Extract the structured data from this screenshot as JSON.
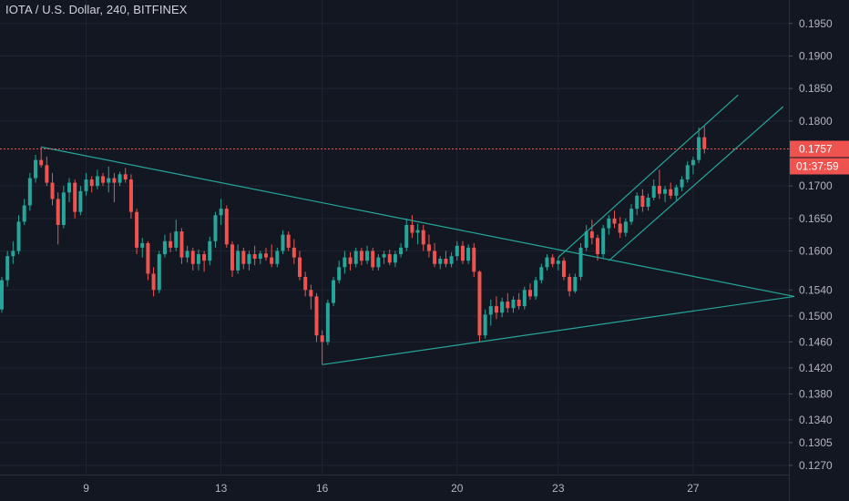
{
  "title": "IOTA / U.S. Dollar, 240, BITFINEX",
  "colors": {
    "background": "#131722",
    "grid": "#1f2433",
    "up": "#26a69a",
    "down": "#ef5350",
    "trendline": "#26a69a",
    "axis_text": "#b2b5be",
    "price_tag": "#ef5350"
  },
  "current_price": {
    "label": "0.1757",
    "value": 0.1757,
    "countdown": "01:37:59"
  },
  "chart_data": {
    "type": "candlestick",
    "title": "IOTA / U.S. Dollar, 240, BITFINEX",
    "y_ticks": [
      {
        "label": "0.1950",
        "value": 0.195
      },
      {
        "label": "0.1900",
        "value": 0.19
      },
      {
        "label": "0.1850",
        "value": 0.185
      },
      {
        "label": "0.1800",
        "value": 0.18
      },
      {
        "label": "0.1700",
        "value": 0.17
      },
      {
        "label": "0.1650",
        "value": 0.165
      },
      {
        "label": "0.1600",
        "value": 0.16
      },
      {
        "label": "0.1540",
        "value": 0.154
      },
      {
        "label": "0.1500",
        "value": 0.15
      },
      {
        "label": "0.1460",
        "value": 0.146
      },
      {
        "label": "0.1420",
        "value": 0.142
      },
      {
        "label": "0.1380",
        "value": 0.138
      },
      {
        "label": "0.1340",
        "value": 0.134
      },
      {
        "label": "0.1305",
        "value": 0.1305
      },
      {
        "label": "0.1270",
        "value": 0.127
      }
    ],
    "x_ticks": [
      {
        "label": "9",
        "index": 15
      },
      {
        "label": "13",
        "index": 39
      },
      {
        "label": "16",
        "index": 57
      },
      {
        "label": "20",
        "index": 81
      },
      {
        "label": "23",
        "index": 99
      },
      {
        "label": "27",
        "index": 123
      }
    ],
    "candles": [
      [
        0.151,
        0.156,
        0.1505,
        0.1555
      ],
      [
        0.1555,
        0.16,
        0.1545,
        0.1592
      ],
      [
        0.1592,
        0.1615,
        0.158,
        0.16
      ],
      [
        0.16,
        0.1655,
        0.1595,
        0.1645
      ],
      [
        0.1645,
        0.168,
        0.164,
        0.167
      ],
      [
        0.167,
        0.172,
        0.1662,
        0.1712
      ],
      [
        0.1712,
        0.1748,
        0.1705,
        0.174
      ],
      [
        0.174,
        0.176,
        0.1728,
        0.1732
      ],
      [
        0.1732,
        0.1745,
        0.17,
        0.1705
      ],
      [
        0.1705,
        0.172,
        0.167,
        0.168
      ],
      [
        0.168,
        0.169,
        0.161,
        0.164
      ],
      [
        0.164,
        0.17,
        0.1635,
        0.169
      ],
      [
        0.169,
        0.1712,
        0.1675,
        0.1705
      ],
      [
        0.1705,
        0.171,
        0.165,
        0.166
      ],
      [
        0.166,
        0.17,
        0.1655,
        0.1692
      ],
      [
        0.1692,
        0.172,
        0.1685,
        0.171
      ],
      [
        0.171,
        0.1715,
        0.169,
        0.17
      ],
      [
        0.17,
        0.1725,
        0.1695,
        0.1715
      ],
      [
        0.1715,
        0.172,
        0.17,
        0.1705
      ],
      [
        0.1705,
        0.173,
        0.169,
        0.1712
      ],
      [
        0.1712,
        0.172,
        0.1675,
        0.1705
      ],
      [
        0.1705,
        0.1722,
        0.17,
        0.1718
      ],
      [
        0.1718,
        0.1728,
        0.1705,
        0.171
      ],
      [
        0.171,
        0.1718,
        0.165,
        0.166
      ],
      [
        0.166,
        0.1665,
        0.1595,
        0.1605
      ],
      [
        0.1605,
        0.162,
        0.159,
        0.1612
      ],
      [
        0.1612,
        0.1615,
        0.1555,
        0.1565
      ],
      [
        0.1565,
        0.1575,
        0.153,
        0.154
      ],
      [
        0.154,
        0.16,
        0.1535,
        0.1595
      ],
      [
        0.1595,
        0.1625,
        0.159,
        0.1615
      ],
      [
        0.1615,
        0.1628,
        0.1598,
        0.1605
      ],
      [
        0.1605,
        0.1648,
        0.16,
        0.163
      ],
      [
        0.163,
        0.1635,
        0.158,
        0.159
      ],
      [
        0.159,
        0.1608,
        0.1582,
        0.16
      ],
      [
        0.16,
        0.1605,
        0.157,
        0.158
      ],
      [
        0.158,
        0.1602,
        0.157,
        0.1595
      ],
      [
        0.1595,
        0.16,
        0.1568,
        0.1585
      ],
      [
        0.1585,
        0.1622,
        0.1578,
        0.1615
      ],
      [
        0.1615,
        0.166,
        0.1605,
        0.1655
      ],
      [
        0.1655,
        0.168,
        0.164,
        0.1665
      ],
      [
        0.1665,
        0.167,
        0.1605,
        0.161
      ],
      [
        0.161,
        0.1615,
        0.156,
        0.157
      ],
      [
        0.157,
        0.161,
        0.1565,
        0.16
      ],
      [
        0.16,
        0.1605,
        0.1572,
        0.158
      ],
      [
        0.158,
        0.16,
        0.157,
        0.1595
      ],
      [
        0.1595,
        0.1608,
        0.1578,
        0.1588
      ],
      [
        0.1588,
        0.16,
        0.158,
        0.1596
      ],
      [
        0.1596,
        0.1605,
        0.1585,
        0.159
      ],
      [
        0.159,
        0.161,
        0.1575,
        0.158
      ],
      [
        0.158,
        0.1605,
        0.1575,
        0.16
      ],
      [
        0.16,
        0.1632,
        0.1595,
        0.1625
      ],
      [
        0.1625,
        0.163,
        0.16,
        0.1605
      ],
      [
        0.1605,
        0.1618,
        0.158,
        0.159
      ],
      [
        0.159,
        0.16,
        0.1555,
        0.156
      ],
      [
        0.156,
        0.1568,
        0.153,
        0.154
      ],
      [
        0.154,
        0.1548,
        0.151,
        0.153
      ],
      [
        0.153,
        0.1535,
        0.146,
        0.147
      ],
      [
        0.147,
        0.1478,
        0.1425,
        0.146
      ],
      [
        0.146,
        0.1525,
        0.1455,
        0.152
      ],
      [
        0.152,
        0.156,
        0.1515,
        0.1555
      ],
      [
        0.1555,
        0.1585,
        0.155,
        0.1575
      ],
      [
        0.1575,
        0.16,
        0.1565,
        0.159
      ],
      [
        0.159,
        0.1598,
        0.157,
        0.158
      ],
      [
        0.158,
        0.1605,
        0.1575,
        0.16
      ],
      [
        0.16,
        0.1605,
        0.1578,
        0.1585
      ],
      [
        0.1585,
        0.1608,
        0.158,
        0.16
      ],
      [
        0.16,
        0.1605,
        0.157,
        0.1575
      ],
      [
        0.1575,
        0.1595,
        0.157,
        0.159
      ],
      [
        0.159,
        0.16,
        0.158,
        0.1595
      ],
      [
        0.1595,
        0.1602,
        0.1578,
        0.1582
      ],
      [
        0.1582,
        0.16,
        0.1575,
        0.1595
      ],
      [
        0.1595,
        0.1612,
        0.159,
        0.1605
      ],
      [
        0.1605,
        0.165,
        0.16,
        0.164
      ],
      [
        0.164,
        0.1655,
        0.162,
        0.1628
      ],
      [
        0.1628,
        0.1642,
        0.161,
        0.1632
      ],
      [
        0.1632,
        0.164,
        0.16,
        0.161
      ],
      [
        0.161,
        0.1625,
        0.159,
        0.16
      ],
      [
        0.16,
        0.1612,
        0.1575,
        0.158
      ],
      [
        0.158,
        0.1592,
        0.1572,
        0.1588
      ],
      [
        0.1588,
        0.16,
        0.1575,
        0.158
      ],
      [
        0.158,
        0.1598,
        0.1575,
        0.1592
      ],
      [
        0.1592,
        0.1615,
        0.1585,
        0.1608
      ],
      [
        0.1608,
        0.1615,
        0.158,
        0.1585
      ],
      [
        0.1585,
        0.161,
        0.158,
        0.1605
      ],
      [
        0.1605,
        0.1612,
        0.156,
        0.1568
      ],
      [
        0.1568,
        0.157,
        0.146,
        0.147
      ],
      [
        0.147,
        0.151,
        0.1465,
        0.1502
      ],
      [
        0.1502,
        0.1525,
        0.1485,
        0.1515
      ],
      [
        0.1515,
        0.153,
        0.1495,
        0.1505
      ],
      [
        0.1505,
        0.1528,
        0.1498,
        0.1522
      ],
      [
        0.1522,
        0.1535,
        0.1505,
        0.1512
      ],
      [
        0.1512,
        0.153,
        0.1505,
        0.1525
      ],
      [
        0.1525,
        0.1535,
        0.151,
        0.1515
      ],
      [
        0.1515,
        0.1545,
        0.151,
        0.154
      ],
      [
        0.154,
        0.155,
        0.1525,
        0.153
      ],
      [
        0.153,
        0.156,
        0.1525,
        0.1555
      ],
      [
        0.1555,
        0.158,
        0.155,
        0.1575
      ],
      [
        0.1575,
        0.1595,
        0.157,
        0.159
      ],
      [
        0.159,
        0.1595,
        0.1575,
        0.158
      ],
      [
        0.158,
        0.159,
        0.157,
        0.1585
      ],
      [
        0.1585,
        0.159,
        0.1555,
        0.156
      ],
      [
        0.156,
        0.1565,
        0.153,
        0.1538
      ],
      [
        0.1538,
        0.1565,
        0.1535,
        0.156
      ],
      [
        0.156,
        0.1612,
        0.1555,
        0.1605
      ],
      [
        0.1605,
        0.164,
        0.16,
        0.163
      ],
      [
        0.163,
        0.1648,
        0.161,
        0.162
      ],
      [
        0.162,
        0.1625,
        0.1585,
        0.1595
      ],
      [
        0.1595,
        0.164,
        0.159,
        0.1635
      ],
      [
        0.1635,
        0.1655,
        0.1625,
        0.165
      ],
      [
        0.165,
        0.1662,
        0.1635,
        0.1642
      ],
      [
        0.1642,
        0.1652,
        0.162,
        0.1628
      ],
      [
        0.1628,
        0.165,
        0.1622,
        0.1645
      ],
      [
        0.1645,
        0.1672,
        0.164,
        0.1665
      ],
      [
        0.1665,
        0.169,
        0.1655,
        0.1685
      ],
      [
        0.1685,
        0.1695,
        0.166,
        0.1668
      ],
      [
        0.1668,
        0.1688,
        0.1662,
        0.1682
      ],
      [
        0.1682,
        0.171,
        0.1678,
        0.17
      ],
      [
        0.17,
        0.1725,
        0.168,
        0.1688
      ],
      [
        0.1688,
        0.17,
        0.1675,
        0.1695
      ],
      [
        0.1695,
        0.1705,
        0.168,
        0.1685
      ],
      [
        0.1685,
        0.1702,
        0.1678,
        0.1698
      ],
      [
        0.1698,
        0.1715,
        0.1692,
        0.171
      ],
      [
        0.171,
        0.1738,
        0.1705,
        0.1732
      ],
      [
        0.1732,
        0.1745,
        0.1718,
        0.174
      ],
      [
        0.174,
        0.179,
        0.1735,
        0.1775
      ],
      [
        0.1775,
        0.1792,
        0.175,
        0.1757
      ]
    ],
    "trendlines": [
      {
        "name": "falling-resistance",
        "from": [
          7,
          0.176
        ],
        "to": [
          141,
          0.153
        ]
      },
      {
        "name": "rising-support",
        "from": [
          57,
          0.1425
        ],
        "to": [
          141,
          0.153
        ]
      },
      {
        "name": "channel-upper",
        "from": [
          99,
          0.159
        ],
        "to": [
          131,
          0.184
        ]
      },
      {
        "name": "channel-lower",
        "from": [
          108,
          0.1585
        ],
        "to": [
          139,
          0.1822
        ]
      }
    ],
    "ylim": [
      0.126,
      0.1975
    ],
    "grid": true
  }
}
